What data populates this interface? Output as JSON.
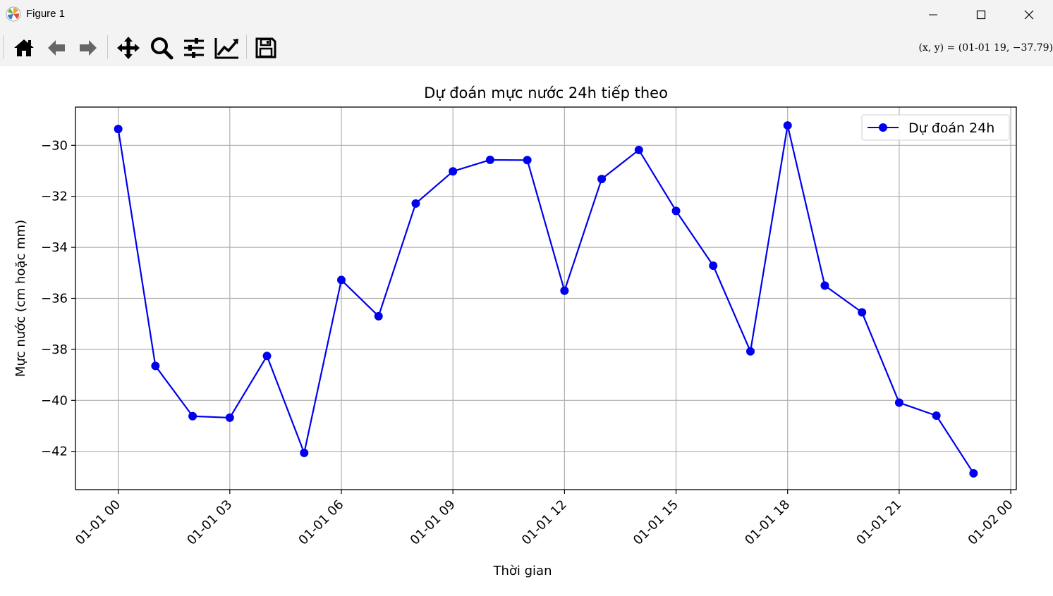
{
  "window": {
    "title": "Figure 1",
    "minimize_icon": "minimize-icon",
    "maximize_icon": "maximize-icon",
    "close_icon": "close-icon"
  },
  "toolbar": {
    "buttons": [
      {
        "name": "home-icon"
      },
      {
        "name": "back-arrow-icon"
      },
      {
        "name": "forward-arrow-icon"
      },
      {
        "name": "pan-move-icon"
      },
      {
        "name": "zoom-magnifier-icon"
      },
      {
        "name": "configure-subplots-icon"
      },
      {
        "name": "edit-axis-icon"
      },
      {
        "name": "save-floppy-icon"
      }
    ],
    "coords": "(x, y) = (01-01 19, −37.79)"
  },
  "chart_data": {
    "type": "line",
    "title": "Dự đoán mực nước 24h tiếp theo",
    "xlabel": "Thời gian",
    "ylabel": "Mực nước (cm hoặc mm)",
    "xlim_hours": [
      -1.15,
      24.15
    ],
    "ylim": [
      -43.5,
      -28.5
    ],
    "xticks": [
      {
        "hour": 0,
        "label": "01-01 00"
      },
      {
        "hour": 3,
        "label": "01-01 03"
      },
      {
        "hour": 6,
        "label": "01-01 06"
      },
      {
        "hour": 9,
        "label": "01-01 09"
      },
      {
        "hour": 12,
        "label": "01-01 12"
      },
      {
        "hour": 15,
        "label": "01-01 15"
      },
      {
        "hour": 18,
        "label": "01-01 18"
      },
      {
        "hour": 21,
        "label": "01-01 21"
      },
      {
        "hour": 24,
        "label": "01-02 00"
      }
    ],
    "yticks": [
      {
        "value": -30,
        "label": "−30"
      },
      {
        "value": -32,
        "label": "−32"
      },
      {
        "value": -34,
        "label": "−34"
      },
      {
        "value": -36,
        "label": "−36"
      },
      {
        "value": -38,
        "label": "−38"
      },
      {
        "value": -40,
        "label": "−40"
      },
      {
        "value": -42,
        "label": "−42"
      }
    ],
    "grid": true,
    "legend_position": "top-right",
    "series": [
      {
        "name": "Dự đoán 24h",
        "color": "#0000ee",
        "marker": "circle",
        "x_hours": [
          0,
          1,
          2,
          3,
          4,
          5,
          6,
          7,
          8,
          9,
          10,
          11,
          12,
          13,
          14,
          15,
          16,
          17,
          18,
          19,
          20,
          21,
          22,
          23
        ],
        "values": [
          -29.36,
          -38.65,
          -40.62,
          -40.68,
          -38.26,
          -42.06,
          -35.28,
          -36.7,
          -32.28,
          -31.02,
          -30.57,
          -30.58,
          -35.7,
          -31.32,
          -30.18,
          -32.57,
          -34.72,
          -38.08,
          -29.22,
          -35.5,
          -36.55,
          -40.09,
          -40.6,
          -42.86
        ]
      }
    ]
  }
}
